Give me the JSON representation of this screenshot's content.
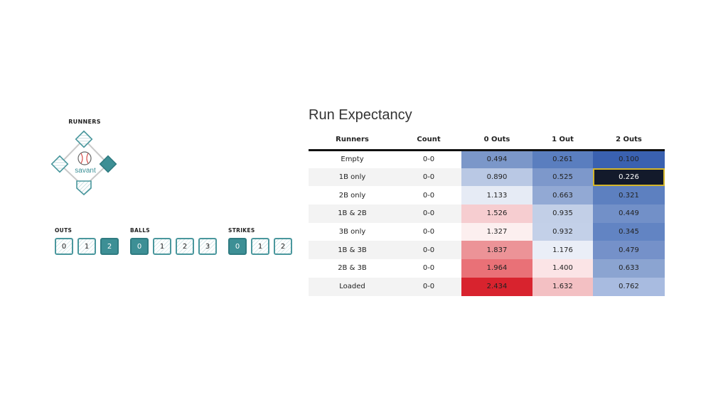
{
  "diamond": {
    "title": "RUNNERS",
    "logo_text": "savant",
    "runners_on": {
      "first": true,
      "second": false,
      "third": false
    },
    "colors": {
      "teal": "#3d8f95",
      "teal_border": "#4a979d",
      "ball_red": "#d9534f"
    },
    "icons": [
      "first-base-icon",
      "second-base-icon",
      "third-base-icon",
      "home-plate-icon",
      "baseball-icon"
    ]
  },
  "count": {
    "outs": {
      "label": "OUTS",
      "options": [
        "0",
        "1",
        "2"
      ],
      "selected": "2"
    },
    "balls": {
      "label": "BALLS",
      "options": [
        "0",
        "1",
        "2",
        "3"
      ],
      "selected": "0"
    },
    "strikes": {
      "label": "STRIKES",
      "options": [
        "0",
        "1",
        "2"
      ],
      "selected": "0"
    }
  },
  "table": {
    "title": "Run Expectancy",
    "headers": [
      "Runners",
      "Count",
      "0 Outs",
      "1 Out",
      "2 Outs"
    ],
    "rows": [
      {
        "runners": "Empty",
        "count": "0-0",
        "values": [
          "0.494",
          "0.261",
          "0.100"
        ],
        "colors": [
          "#7b97c9",
          "#5a7ebf",
          "#3a61b0"
        ]
      },
      {
        "runners": "1B only",
        "count": "0-0",
        "values": [
          "0.890",
          "0.525",
          "0.226"
        ],
        "colors": [
          "#b9c8e4",
          "#7d98cb",
          "#131a2b"
        ]
      },
      {
        "runners": "2B only",
        "count": "0-0",
        "values": [
          "1.133",
          "0.663",
          "0.321"
        ],
        "colors": [
          "#e6ebf5",
          "#92a9d4",
          "#5d80c0"
        ]
      },
      {
        "runners": "1B & 2B",
        "count": "0-0",
        "values": [
          "1.526",
          "0.935",
          "0.449"
        ],
        "colors": [
          "#f6cdd0",
          "#c2cfe7",
          "#7290c8"
        ]
      },
      {
        "runners": "3B only",
        "count": "0-0",
        "values": [
          "1.327",
          "0.932",
          "0.345"
        ],
        "colors": [
          "#fcefef",
          "#c3d0e8",
          "#6284c3"
        ]
      },
      {
        "runners": "1B & 3B",
        "count": "0-0",
        "values": [
          "1.837",
          "1.176",
          "0.479"
        ],
        "colors": [
          "#ec9397",
          "#eaeef7",
          "#7591c9"
        ]
      },
      {
        "runners": "2B & 3B",
        "count": "0-0",
        "values": [
          "1.964",
          "1.400",
          "0.633"
        ],
        "colors": [
          "#e97177",
          "#fbe4e6",
          "#8ba4d1"
        ]
      },
      {
        "runners": "Loaded",
        "count": "0-0",
        "values": [
          "2.434",
          "1.632",
          "0.762"
        ],
        "colors": [
          "#d8232e",
          "#f3c0c3",
          "#a8bbe0"
        ]
      }
    ],
    "selected_cell": {
      "row": 1,
      "col": 2
    },
    "selected_border_color": "#d4b62b"
  }
}
